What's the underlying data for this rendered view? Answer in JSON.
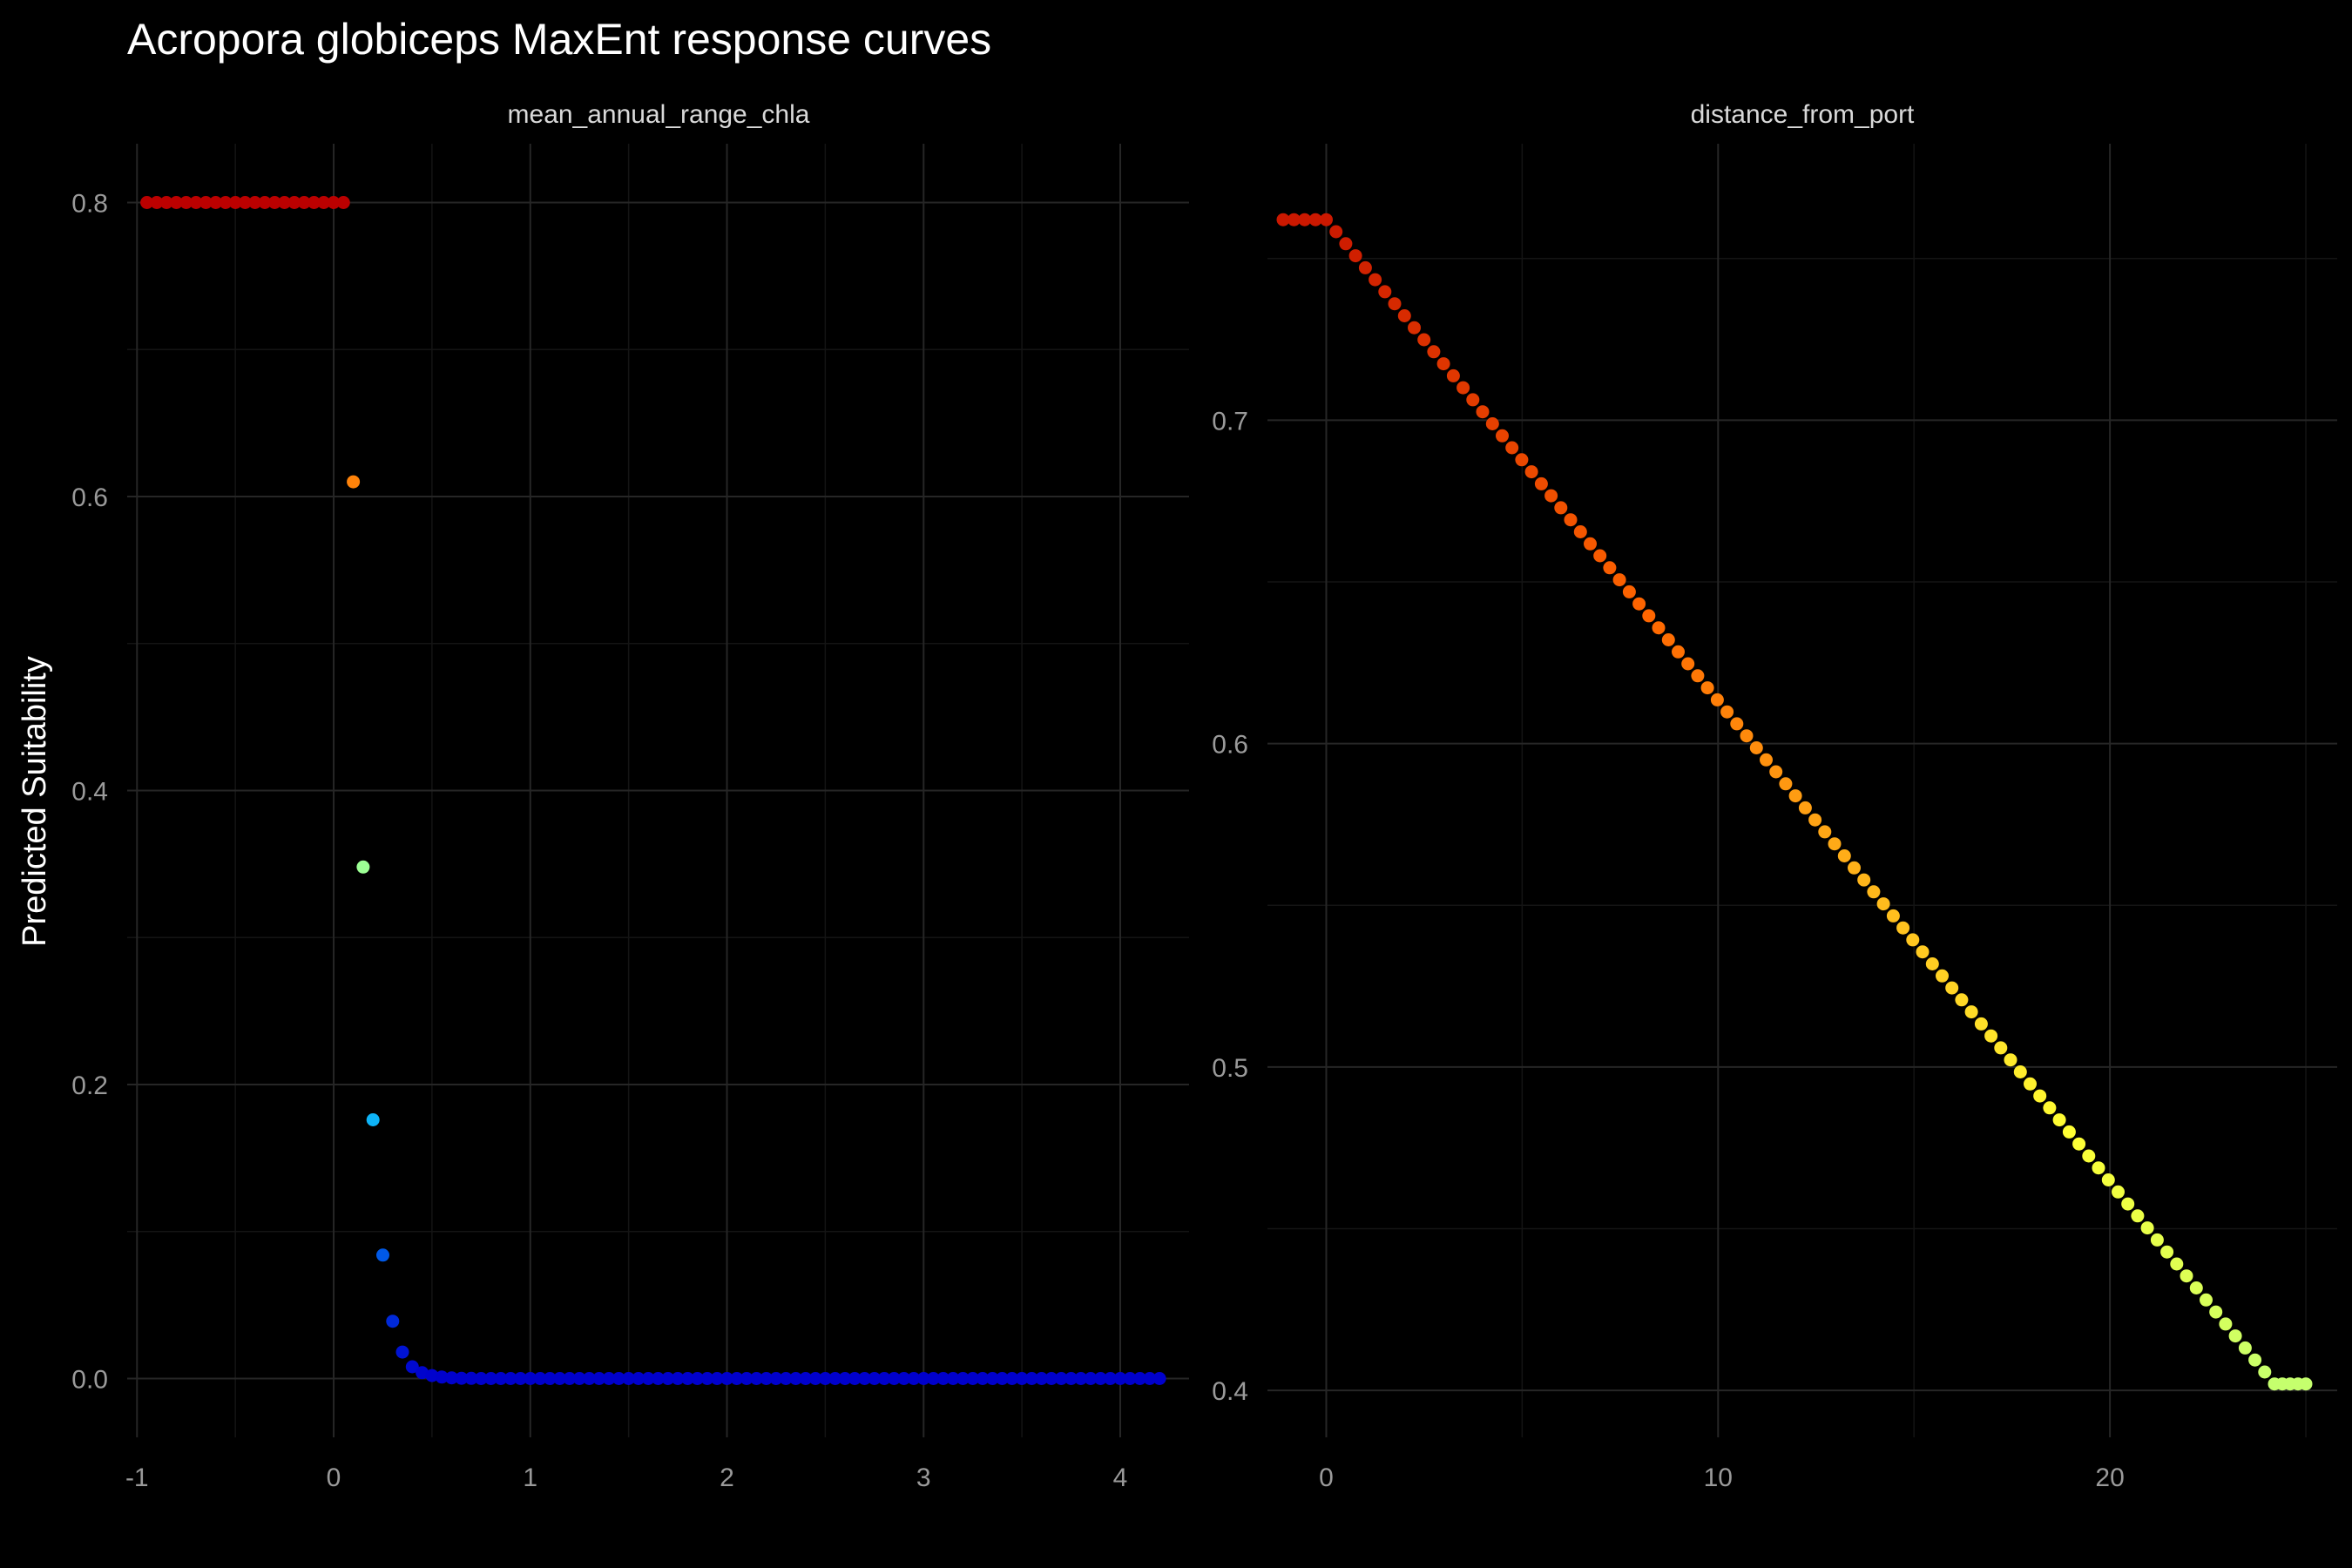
{
  "title": "Acropora globiceps MaxEnt response curves",
  "ylabel": "Predicted Suitability",
  "chart_data": [
    {
      "type": "scatter",
      "panel": "mean_annual_range_chla",
      "xlim": [
        -1.05,
        4.35
      ],
      "ylim": [
        -0.04,
        0.84
      ],
      "xticks": [
        -1,
        0,
        1,
        2,
        3,
        4
      ],
      "xtick_labels": [
        "-1",
        "0",
        "1",
        "2",
        "3",
        "4"
      ],
      "yticks": [
        0.0,
        0.2,
        0.4,
        0.6,
        0.8
      ],
      "ytick_labels": [
        "0.0",
        "0.2",
        "0.4",
        "0.6",
        "0.8"
      ],
      "x": [
        -0.95,
        -0.9,
        -0.85,
        -0.8,
        -0.75,
        -0.7,
        -0.65,
        -0.6,
        -0.55,
        -0.5,
        -0.45,
        -0.4,
        -0.35,
        -0.3,
        -0.25,
        -0.2,
        -0.15,
        -0.1,
        -0.05,
        0.0,
        0.05,
        0.1,
        0.15,
        0.2,
        0.25,
        0.3,
        0.35,
        0.4,
        0.45,
        0.5,
        0.55,
        0.6,
        0.65,
        0.7,
        0.75,
        0.8,
        0.85,
        0.9,
        0.95,
        1.0,
        1.05,
        1.1,
        1.15,
        1.2,
        1.25,
        1.3,
        1.35,
        1.4,
        1.45,
        1.5,
        1.55,
        1.6,
        1.65,
        1.7,
        1.75,
        1.8,
        1.85,
        1.9,
        1.95,
        2.0,
        2.05,
        2.1,
        2.15,
        2.2,
        2.25,
        2.3,
        2.35,
        2.4,
        2.45,
        2.5,
        2.55,
        2.6,
        2.65,
        2.7,
        2.75,
        2.8,
        2.85,
        2.9,
        2.95,
        3.0,
        3.05,
        3.1,
        3.15,
        3.2,
        3.25,
        3.3,
        3.35,
        3.4,
        3.45,
        3.5,
        3.55,
        3.6,
        3.65,
        3.7,
        3.75,
        3.8,
        3.85,
        3.9,
        3.95,
        4.0,
        4.05,
        4.1,
        4.15,
        4.2
      ],
      "y": [
        0.8,
        0.8,
        0.8,
        0.8,
        0.8,
        0.8,
        0.8,
        0.8,
        0.8,
        0.8,
        0.8,
        0.8,
        0.8,
        0.8,
        0.8,
        0.8,
        0.8,
        0.8,
        0.8,
        0.8,
        0.8,
        0.61,
        0.348,
        0.176,
        0.084,
        0.039,
        0.018,
        0.008,
        0.004,
        0.002,
        0.001,
        0.0005,
        0.0002,
        0.0001,
        0.0,
        0.0,
        0.0,
        0.0,
        0.0,
        0.0,
        0.0,
        0.0,
        0.0,
        0.0,
        0.0,
        0.0,
        0.0,
        0.0,
        0.0,
        0.0,
        0.0,
        0.0,
        0.0,
        0.0,
        0.0,
        0.0,
        0.0,
        0.0,
        0.0,
        0.0,
        0.0,
        0.0,
        0.0,
        0.0,
        0.0,
        0.0,
        0.0,
        0.0,
        0.0,
        0.0,
        0.0,
        0.0,
        0.0,
        0.0,
        0.0,
        0.0,
        0.0,
        0.0,
        0.0,
        0.0,
        0.0,
        0.0,
        0.0,
        0.0,
        0.0,
        0.0,
        0.0,
        0.0,
        0.0,
        0.0,
        0.0,
        0.0,
        0.0,
        0.0,
        0.0,
        0.0,
        0.0,
        0.0,
        0.0,
        0.0,
        0.0,
        0.0,
        0.0,
        0.0
      ]
    },
    {
      "type": "scatter",
      "panel": "distance_from_port",
      "xlim": [
        -1.5,
        25.8
      ],
      "ylim": [
        0.3855,
        0.7855
      ],
      "xticks": [
        0,
        10,
        20
      ],
      "xtick_labels": [
        "0",
        "10",
        "20"
      ],
      "yticks": [
        0.4,
        0.5,
        0.6,
        0.7
      ],
      "ytick_labels": [
        "0.4",
        "0.5",
        "0.6",
        "0.7"
      ],
      "line_segments": [
        {
          "x_start": -1.1,
          "x_end": 0.0,
          "count": 5,
          "y_start": 0.762,
          "y_end": 0.762
        },
        {
          "x_start": 0.0,
          "x_end": 24.2,
          "count": 98,
          "y_start": 0.762,
          "y_end": 0.402
        },
        {
          "x_start": 24.2,
          "x_end": 25.0,
          "count": 5,
          "y_start": 0.402,
          "y_end": 0.402
        }
      ]
    }
  ],
  "colors": {
    "background": "#000000",
    "scale_low": "#0000cc",
    "scale_mid_low": "#00aaff",
    "scale_mid": "#88ffaa",
    "scale_mid_high": "#ffff33",
    "scale_high": "#ff6600",
    "scale_top": "#bb0000"
  }
}
